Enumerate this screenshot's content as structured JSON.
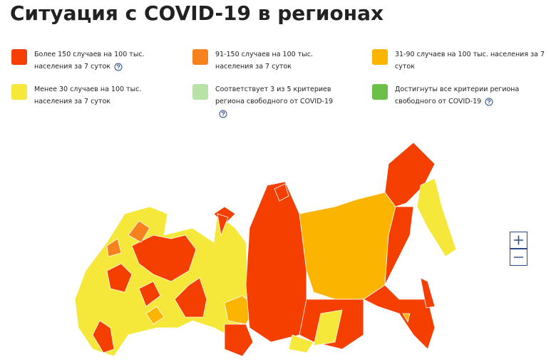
{
  "title": "Ситуация с COVID-19 в регионах",
  "legend": [
    {
      "label": "Более 150 случаев на 100 тыс. населения за 7 суток",
      "color": "#f43f00"
    },
    {
      "label": "91-150 случаев на 100 тыс. населения за 7 суток",
      "color": "#f5821f"
    },
    {
      "label": "31-90 случаев на 100 тыс. населения за 7 суток",
      "color": "#fbb400"
    },
    {
      "label": "Менее 30 случаев на 100 тыс. населения за 7 суток",
      "color": "#f5e83a"
    },
    {
      "label": "Соответствует 3 из 5 критериев региона свободного от COVID-19",
      "color": "#b9e2a9"
    },
    {
      "label": "Достигнуты все критерии региона свободного от COVID-19",
      "color": "#6cc04a"
    }
  ]
}
